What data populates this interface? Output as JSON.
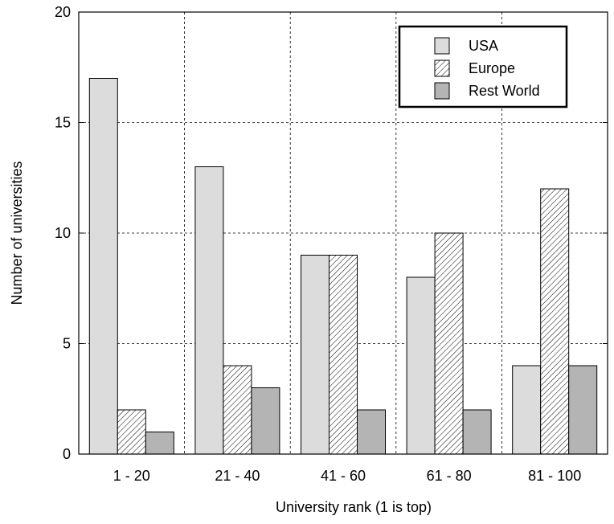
{
  "chart_data": {
    "type": "bar",
    "title": "",
    "xlabel": "University rank  (1 is top)",
    "ylabel": "Number of universities",
    "categories": [
      "1 - 20",
      "21 - 40",
      "41 - 60",
      "61 - 80",
      "81 - 100"
    ],
    "series": [
      {
        "name": "USA",
        "values": [
          17,
          13,
          9,
          8,
          4
        ],
        "fill": "#dcdcdc",
        "pattern": "solid"
      },
      {
        "name": "Europe",
        "values": [
          2,
          4,
          9,
          10,
          12
        ],
        "fill": "#ffffff",
        "pattern": "diagonal-hatch"
      },
      {
        "name": "Rest World",
        "values": [
          1,
          3,
          2,
          2,
          4
        ],
        "fill": "#b4b4b4",
        "pattern": "solid"
      }
    ],
    "ylim": [
      0,
      20
    ],
    "yticks": [
      0,
      5,
      10,
      15,
      20
    ],
    "grid": true,
    "legend_position": "top-right"
  }
}
